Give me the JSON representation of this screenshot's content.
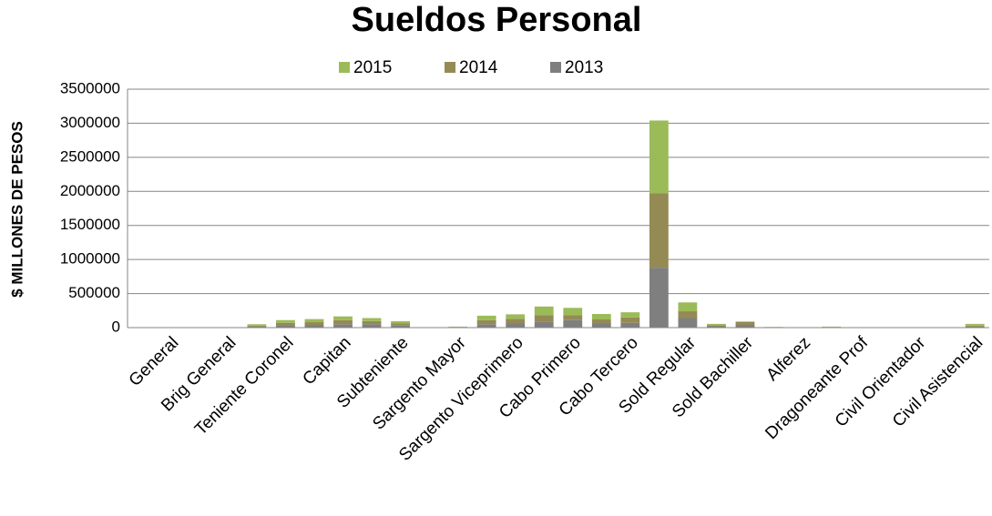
{
  "chart_data": {
    "type": "stacked_bar",
    "title": "Sueldos Personal",
    "y_label": "$ MILLONES DE PESOS",
    "categories": [
      null,
      "General",
      null,
      "Brig General",
      null,
      "Teniente Coronel",
      null,
      "Capitan",
      null,
      "Subteniente",
      null,
      "Sargento Mayor",
      null,
      "Sargento Viceprimero",
      null,
      "Cabo Primero",
      null,
      "Cabo Tercero",
      null,
      "Sold Regular",
      null,
      "Sold Bachiller",
      null,
      "Alferez",
      null,
      "Dragoneante Prof",
      null,
      "Civil Orientador",
      null,
      "Civil Asistencial"
    ],
    "series": [
      {
        "name": "2013",
        "color": "#7f7f7f",
        "values": [
          0,
          0,
          0,
          0,
          15000,
          35000,
          40000,
          50000,
          50000,
          30000,
          0,
          5000,
          50000,
          60000,
          90000,
          110000,
          60000,
          70000,
          880000,
          140000,
          20000,
          40000,
          5000,
          0,
          5000,
          2000,
          0,
          0,
          0,
          15000
        ]
      },
      {
        "name": "2014",
        "color": "#948a54",
        "values": [
          0,
          0,
          0,
          0,
          15000,
          35000,
          40000,
          60000,
          45000,
          30000,
          0,
          5000,
          60000,
          70000,
          90000,
          70000,
          60000,
          80000,
          1090000,
          100000,
          15000,
          45000,
          3000,
          0,
          5000,
          2000,
          0,
          0,
          0,
          15000
        ]
      },
      {
        "name": "2015",
        "color": "#9bbb59",
        "values": [
          0,
          0,
          0,
          0,
          20000,
          40000,
          45000,
          55000,
          45000,
          35000,
          0,
          5000,
          65000,
          65000,
          130000,
          110000,
          80000,
          75000,
          1070000,
          130000,
          20000,
          5000,
          2000,
          0,
          5000,
          1000,
          0,
          0,
          0,
          25000
        ]
      }
    ],
    "ylim": [
      0,
      3500000
    ],
    "yticks": [
      0,
      500000,
      1000000,
      1500000,
      2000000,
      2500000,
      3000000,
      3500000
    ],
    "grid": true,
    "legend": "top"
  }
}
